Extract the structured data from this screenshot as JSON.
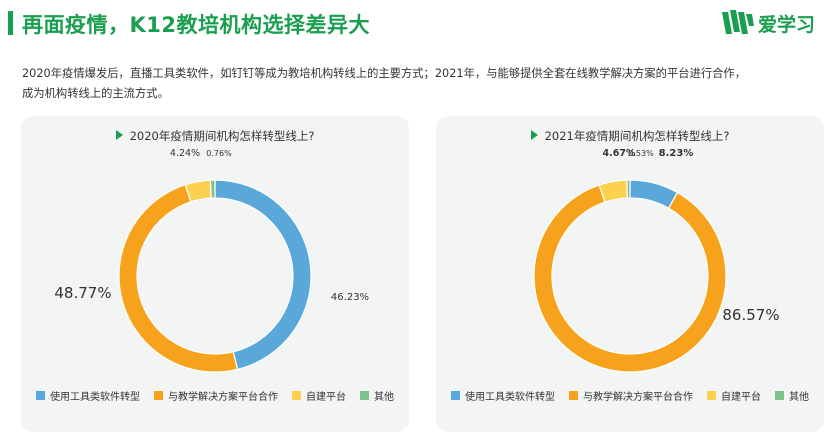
{
  "header": {
    "title": "再面疫情，K12教培机构选择差异大",
    "logo_text": "爱学习"
  },
  "description": {
    "line1": "2020年疫情爆发后，直播工具类软件，如钉钉等成为教培机构转线上的主要方式；2021年，与能够提供全套在线教学解决方案的平台进行合作，",
    "line2": "成为机构转线上的主流方式。"
  },
  "colors": {
    "accent": "#1a9e4f",
    "card_bg": "#f3f4f4",
    "series": [
      "#5aa7d9",
      "#f7a21d",
      "#fcd14d",
      "#7fc28c"
    ]
  },
  "legend": [
    "使用工具类软件转型",
    "与教学解决方案平台合作",
    "自建平台",
    "其他"
  ],
  "chart_data": [
    {
      "type": "pie",
      "title": "2020年疫情期间机构怎样转型线上?",
      "categories": [
        "使用工具类软件转型",
        "与教学解决方案平台合作",
        "自建平台",
        "其他"
      ],
      "values": [
        46.23,
        48.77,
        4.24,
        0.76
      ],
      "labels": [
        "46.23%",
        "48.77%",
        "4.24%",
        "0.76%"
      ]
    },
    {
      "type": "pie",
      "title": "2021年疫情期间机构怎样转型线上?",
      "categories": [
        "使用工具类软件转型",
        "与教学解决方案平台合作",
        "自建平台",
        "其他"
      ],
      "values": [
        8.23,
        86.57,
        4.67,
        0.53
      ],
      "labels": [
        "8.23%",
        "86.57%",
        "4.67%",
        "0.53%"
      ]
    }
  ]
}
